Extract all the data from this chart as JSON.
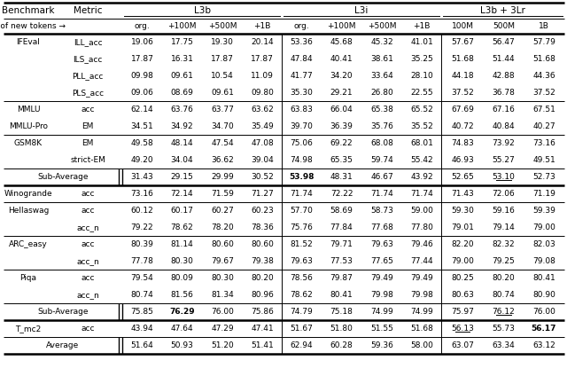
{
  "rows": [
    {
      "bench": "IFEval",
      "metric": "ILL_acc",
      "vals": [
        "19.06",
        "17.75",
        "19.30",
        "20.14",
        "53.36",
        "45.68",
        "45.32",
        "41.01",
        "57.67",
        "56.47",
        "57.79"
      ],
      "bold": [],
      "underline": []
    },
    {
      "bench": "",
      "metric": "ILS_acc",
      "vals": [
        "17.87",
        "16.31",
        "17.87",
        "17.87",
        "47.84",
        "40.41",
        "38.61",
        "35.25",
        "51.68",
        "51.44",
        "51.68"
      ],
      "bold": [],
      "underline": []
    },
    {
      "bench": "",
      "metric": "PLL_acc",
      "vals": [
        "09.98",
        "09.61",
        "10.54",
        "11.09",
        "41.77",
        "34.20",
        "33.64",
        "28.10",
        "44.18",
        "42.88",
        "44.36"
      ],
      "bold": [],
      "underline": []
    },
    {
      "bench": "",
      "metric": "PLS_acc",
      "vals": [
        "09.06",
        "08.69",
        "09.61",
        "09.80",
        "35.30",
        "29.21",
        "26.80",
        "22.55",
        "37.52",
        "36.78",
        "37.52"
      ],
      "bold": [],
      "underline": []
    },
    {
      "bench": "MMLU",
      "metric": "acc",
      "vals": [
        "62.14",
        "63.76",
        "63.77",
        "63.62",
        "63.83",
        "66.04",
        "65.38",
        "65.52",
        "67.69",
        "67.16",
        "67.51"
      ],
      "bold": [],
      "underline": []
    },
    {
      "bench": "MMLU-Pro",
      "metric": "EM",
      "vals": [
        "34.51",
        "34.92",
        "34.70",
        "35.49",
        "39.70",
        "36.39",
        "35.76",
        "35.52",
        "40.72",
        "40.84",
        "40.27"
      ],
      "bold": [],
      "underline": []
    },
    {
      "bench": "GSM8K",
      "metric": "EM",
      "vals": [
        "49.58",
        "48.14",
        "47.54",
        "47.08",
        "75.06",
        "69.22",
        "68.08",
        "68.01",
        "74.83",
        "73.92",
        "73.16"
      ],
      "bold": [],
      "underline": []
    },
    {
      "bench": "",
      "metric": "strict-EM",
      "vals": [
        "49.20",
        "34.04",
        "36.62",
        "39.04",
        "74.98",
        "65.35",
        "59.74",
        "55.42",
        "46.93",
        "55.27",
        "49.51"
      ],
      "bold": [],
      "underline": []
    },
    {
      "bench": "Sub-Average",
      "metric": "",
      "vals": [
        "31.43",
        "29.15",
        "29.99",
        "30.52",
        "53.98",
        "48.31",
        "46.67",
        "43.92",
        "52.65",
        "53.10",
        "52.73"
      ],
      "bold": [
        4
      ],
      "underline": [
        9
      ],
      "special": true
    },
    {
      "bench": "Winogrande",
      "metric": "acc",
      "vals": [
        "73.16",
        "72.14",
        "71.59",
        "71.27",
        "71.74",
        "72.22",
        "71.74",
        "71.74",
        "71.43",
        "72.06",
        "71.19"
      ],
      "bold": [],
      "underline": []
    },
    {
      "bench": "Hellaswag",
      "metric": "acc",
      "vals": [
        "60.12",
        "60.17",
        "60.27",
        "60.23",
        "57.70",
        "58.69",
        "58.73",
        "59.00",
        "59.30",
        "59.16",
        "59.39"
      ],
      "bold": [],
      "underline": []
    },
    {
      "bench": "",
      "metric": "acc_n",
      "vals": [
        "79.22",
        "78.62",
        "78.20",
        "78.36",
        "75.76",
        "77.84",
        "77.68",
        "77.80",
        "79.01",
        "79.14",
        "79.00"
      ],
      "bold": [],
      "underline": []
    },
    {
      "bench": "ARC_easy",
      "metric": "acc",
      "vals": [
        "80.39",
        "81.14",
        "80.60",
        "80.60",
        "81.52",
        "79.71",
        "79.63",
        "79.46",
        "82.20",
        "82.32",
        "82.03"
      ],
      "bold": [],
      "underline": []
    },
    {
      "bench": "",
      "metric": "acc_n",
      "vals": [
        "77.78",
        "80.30",
        "79.67",
        "79.38",
        "79.63",
        "77.53",
        "77.65",
        "77.44",
        "79.00",
        "79.25",
        "79.08"
      ],
      "bold": [],
      "underline": []
    },
    {
      "bench": "Piqa",
      "metric": "acc",
      "vals": [
        "79.54",
        "80.09",
        "80.30",
        "80.20",
        "78.56",
        "79.87",
        "79.49",
        "79.49",
        "80.25",
        "80.20",
        "80.41"
      ],
      "bold": [],
      "underline": []
    },
    {
      "bench": "",
      "metric": "acc_n",
      "vals": [
        "80.74",
        "81.56",
        "81.34",
        "80.96",
        "78.62",
        "80.41",
        "79.98",
        "79.98",
        "80.63",
        "80.74",
        "80.90"
      ],
      "bold": [],
      "underline": []
    },
    {
      "bench": "Sub-Average",
      "metric": "",
      "vals": [
        "75.85",
        "76.29",
        "76.00",
        "75.86",
        "74.79",
        "75.18",
        "74.99",
        "74.99",
        "75.97",
        "76.12",
        "76.00"
      ],
      "bold": [
        1
      ],
      "underline": [
        9
      ],
      "special": true
    },
    {
      "bench": "T_mc2",
      "metric": "acc",
      "vals": [
        "43.94",
        "47.64",
        "47.29",
        "47.41",
        "51.67",
        "51.80",
        "51.55",
        "51.68",
        "56.13",
        "55.73",
        "56.17"
      ],
      "bold": [
        10
      ],
      "underline": [
        8
      ]
    },
    {
      "bench": "Average",
      "metric": "",
      "vals": [
        "51.64",
        "50.93",
        "51.20",
        "51.41",
        "62.94",
        "60.28",
        "59.36",
        "58.00",
        "63.07",
        "63.34",
        "63.12"
      ],
      "bold": [],
      "underline": [],
      "special": true
    }
  ],
  "thin_lines_after": [
    3,
    5,
    7,
    9,
    11,
    13,
    15,
    17
  ],
  "thick_lines_after": [
    8,
    16
  ],
  "background_color": "#ffffff",
  "fs": 6.5,
  "fs_header": 7.5
}
